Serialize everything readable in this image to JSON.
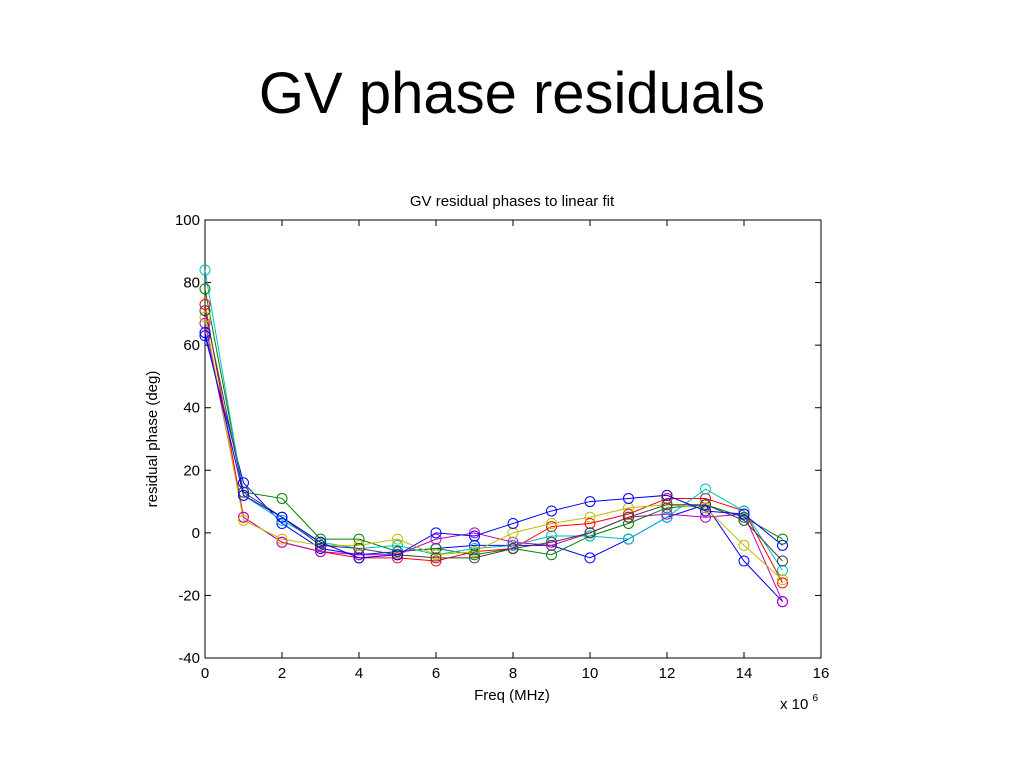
{
  "slide": {
    "title": "GV phase residuals"
  },
  "chart_data": {
    "type": "line",
    "title": "GV residual phases to linear fit",
    "xlabel": "Freq (MHz)",
    "ylabel": "residual phase (deg)",
    "x_exponent_label": "x 10",
    "x_exponent_power": "6",
    "xlim": [
      0,
      16
    ],
    "ylim": [
      -40,
      100
    ],
    "xticks": [
      0,
      2,
      4,
      6,
      8,
      10,
      12,
      14,
      16
    ],
    "yticks": [
      -40,
      -20,
      0,
      20,
      40,
      60,
      80,
      100
    ],
    "marker": "circle",
    "grid": false,
    "x": [
      0,
      1,
      2,
      3,
      4,
      5,
      6,
      7,
      8,
      9,
      10,
      11,
      12,
      13,
      14,
      15
    ],
    "series": [
      {
        "color": "#0000ff",
        "values": [
          63,
          16,
          3,
          -5,
          -7,
          -6,
          -5,
          -4,
          -4,
          -4,
          -8,
          -2,
          5,
          9,
          -9,
          -22
        ]
      },
      {
        "color": "#008000",
        "values": [
          78,
          13,
          11,
          -2,
          -2,
          -6,
          -5,
          -7,
          -5,
          -7,
          -1,
          3,
          8,
          9,
          5,
          -2
        ]
      },
      {
        "color": "#ff0000",
        "values": [
          73,
          5,
          -3,
          -6,
          -8,
          -8,
          -9,
          -6,
          -5,
          2,
          3,
          6,
          11,
          11,
          7,
          -16
        ]
      },
      {
        "color": "#00bfbf",
        "values": [
          84,
          12,
          4,
          -3,
          -5,
          -4,
          -7,
          -5,
          -4,
          -1,
          -1,
          -2,
          5,
          14,
          7,
          -12
        ]
      },
      {
        "color": "#bf00bf",
        "values": [
          67,
          5,
          -3,
          -6,
          -7,
          -7,
          -2,
          0,
          -3,
          -4,
          0,
          5,
          6,
          5,
          6,
          -22
        ]
      },
      {
        "color": "#bfbf00",
        "values": [
          69,
          4,
          -2,
          -4,
          -4,
          -2,
          -7,
          -6,
          0,
          3,
          5,
          8,
          9,
          8,
          -4,
          -15
        ]
      },
      {
        "color": "#404040",
        "values": [
          71,
          13,
          5,
          -4,
          -5,
          -7,
          -8,
          -8,
          -5,
          -3,
          0,
          5,
          9,
          9,
          4,
          -9
        ]
      },
      {
        "color": "#0000ff",
        "values": [
          64,
          12,
          5,
          -3,
          -8,
          -7,
          0,
          -1,
          3,
          7,
          10,
          11,
          12,
          7,
          6,
          -4
        ]
      }
    ]
  }
}
